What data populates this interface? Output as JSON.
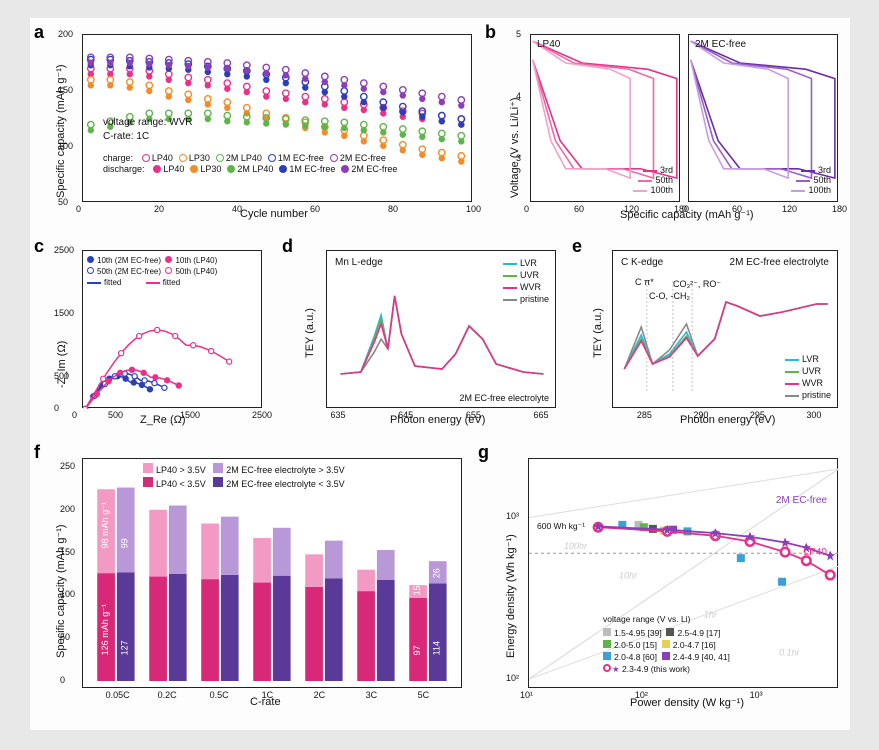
{
  "panels": {
    "a": {
      "label": "a",
      "ylabel": "Specific capacity (mAh g⁻¹)",
      "xlabel": "Cycle number",
      "ylim": [
        50,
        200
      ],
      "yticks": [
        50,
        100,
        150,
        200
      ],
      "xlim": [
        0,
        100
      ],
      "xticks": [
        0,
        20,
        40,
        60,
        80,
        100
      ],
      "annotation1": "voltage range: WVR",
      "annotation2": "C-rate: 1C",
      "legend_header_charge": "charge:",
      "legend_header_discharge": "discharge:",
      "series": [
        {
          "name": "LP40",
          "color": "#e73289"
        },
        {
          "name": "LP30",
          "color": "#f28c2b"
        },
        {
          "name": "2M LP40",
          "color": "#5fb54a"
        },
        {
          "name": "1M EC-free",
          "color": "#2a3fba"
        },
        {
          "name": "2M EC-free",
          "color": "#8a3fb8"
        }
      ],
      "charge_y": {
        "LP40": [
          170,
          170,
          170,
          168,
          165,
          162,
          160,
          157,
          154,
          150,
          148,
          145,
          143,
          140,
          138,
          135,
          132,
          130,
          128,
          125
        ],
        "LP30": [
          160,
          160,
          158,
          155,
          150,
          147,
          143,
          140,
          135,
          130,
          126,
          122,
          118,
          115,
          110,
          106,
          102,
          98,
          95,
          92
        ],
        "2M LP40": [
          120,
          123,
          127,
          130,
          130,
          130,
          130,
          128,
          127,
          126,
          125,
          124,
          123,
          122,
          120,
          118,
          116,
          114,
          112,
          110
        ],
        "1M EC-free": [
          178,
          178,
          177,
          176,
          175,
          174,
          172,
          170,
          168,
          165,
          162,
          158,
          154,
          150,
          145,
          140,
          136,
          132,
          128,
          125
        ],
        "2M EC-free": [
          180,
          180,
          180,
          179,
          178,
          177,
          176,
          175,
          173,
          171,
          169,
          166,
          163,
          160,
          157,
          154,
          151,
          148,
          145,
          142
        ]
      },
      "discharge_y": {
        "LP40": [
          165,
          165,
          165,
          163,
          160,
          157,
          155,
          152,
          149,
          145,
          143,
          140,
          138,
          135,
          133,
          130,
          127,
          125,
          123,
          120
        ],
        "LP30": [
          155,
          155,
          153,
          150,
          145,
          142,
          138,
          135,
          130,
          125,
          121,
          117,
          113,
          110,
          105,
          101,
          97,
          93,
          90,
          87
        ],
        "2M LP40": [
          115,
          118,
          122,
          125,
          125,
          125,
          125,
          123,
          122,
          121,
          120,
          119,
          118,
          117,
          115,
          113,
          111,
          109,
          107,
          105
        ],
        "1M EC-free": [
          173,
          173,
          172,
          171,
          170,
          169,
          167,
          165,
          163,
          160,
          157,
          153,
          149,
          145,
          140,
          135,
          131,
          127,
          123,
          120
        ],
        "2M EC-free": [
          175,
          175,
          175,
          174,
          173,
          172,
          171,
          170,
          168,
          166,
          164,
          161,
          158,
          155,
          152,
          149,
          146,
          143,
          140,
          137
        ]
      }
    },
    "b": {
      "label": "b",
      "left_title": "LP40",
      "right_title": "2M EC-free",
      "ylabel": "Voltage (V vs. Li/Li⁺)",
      "xlabel": "Specific capacity (mAh g⁻¹)",
      "ylim": [
        2.5,
        5.0
      ],
      "yticks": [
        3,
        4,
        5
      ],
      "xlim": [
        0,
        180
      ],
      "xticks": [
        0,
        60,
        120,
        180
      ],
      "legend": [
        "3rd",
        "50th",
        "100th"
      ],
      "colors_left": [
        "#e73289",
        "#ed6aa8",
        "#f3a2c7"
      ],
      "colors_right": [
        "#6a2fa8",
        "#9a5fc7",
        "#c79fe0"
      ]
    },
    "c": {
      "label": "c",
      "ylabel": "-Z_Im (Ω)",
      "xlabel": "Z_Re (Ω)",
      "ylim": [
        0,
        2500
      ],
      "yticks": [
        0,
        500,
        1500,
        2500
      ],
      "xlim": [
        0,
        2500
      ],
      "xticks": [
        0,
        500,
        1500,
        2500
      ],
      "legend": [
        {
          "text": "10th (2M EC-free)",
          "color": "#2a3fba",
          "fill": true
        },
        {
          "text": "10th (LP40)",
          "color": "#e73289",
          "fill": true
        },
        {
          "text": "50th (2M EC-free)",
          "color": "#2a3fba",
          "fill": false
        },
        {
          "text": "50th (LP40)",
          "color": "#e73289",
          "fill": false
        },
        {
          "text": "fitted",
          "color": "#2a3fba",
          "line": true
        },
        {
          "text": "fitted",
          "color": "#e73289",
          "line": true
        }
      ]
    },
    "d": {
      "label": "d",
      "title": "Mn L-edge",
      "ylabel": "TEY (a.u.)",
      "xlabel": "Photon energy (eV)",
      "xlim": [
        635,
        665
      ],
      "xticks": [
        635,
        645,
        655,
        665
      ],
      "annotation": "2M EC-free electrolyte",
      "legend": [
        {
          "text": "LVR",
          "color": "#2bb8d8"
        },
        {
          "text": "UVR",
          "color": "#5fb54a"
        },
        {
          "text": "WVR",
          "color": "#e73289"
        },
        {
          "text": "pristine",
          "color": "#888888"
        }
      ]
    },
    "e": {
      "label": "e",
      "title": "C K-edge",
      "title2": "2M EC-free electrolyte",
      "ylabel": "TEY (a.u.)",
      "xlabel": "Photon energy (eV)",
      "xlim": [
        282,
        301
      ],
      "xticks": [
        285,
        290,
        295,
        300
      ],
      "annotations": [
        "C π*",
        "C-O, -CH₂",
        "CO₃²⁻, RO⁻"
      ],
      "legend": [
        {
          "text": "LVR",
          "color": "#2bb8d8"
        },
        {
          "text": "UVR",
          "color": "#5fb54a"
        },
        {
          "text": "WVR",
          "color": "#e73289"
        },
        {
          "text": "pristine",
          "color": "#888888"
        }
      ]
    },
    "f": {
      "label": "f",
      "ylabel": "Specific capacity (mAh g⁻¹)",
      "xlabel": "C-rate",
      "ylim": [
        0,
        250
      ],
      "yticks": [
        0,
        50,
        100,
        150,
        200,
        250
      ],
      "categories": [
        "0.05C",
        "0.2C",
        "0.5C",
        "1C",
        "2C",
        "3C",
        "5C"
      ],
      "legend": [
        {
          "text": "LP40 > 3.5V",
          "color": "#f29ac3"
        },
        {
          "text": "2M EC-free electrolyte > 3.5V",
          "color": "#b998d8"
        },
        {
          "text": "LP40 < 3.5V",
          "color": "#d82878"
        },
        {
          "text": "2M EC-free electrolyte < 3.5V",
          "color": "#5a3a98"
        }
      ],
      "bars": {
        "lp40_low": [
          126,
          122,
          119,
          115,
          110,
          105,
          97
        ],
        "lp40_high": [
          98,
          78,
          65,
          52,
          38,
          25,
          15
        ],
        "ec_low": [
          127,
          125,
          124,
          123,
          120,
          118,
          114
        ],
        "ec_high": [
          99,
          80,
          68,
          56,
          44,
          35,
          26
        ]
      },
      "bar_labels": {
        "left_bottom": "126 mAh g⁻¹",
        "left_top": "98 mAh g⁻¹",
        "right_bottom": "127",
        "right_top": "99",
        "last_lp_low": "97",
        "last_lp_high": "15",
        "last_ec_low": "114",
        "last_ec_high": "26"
      }
    },
    "g": {
      "label": "g",
      "ylabel": "Energy density (Wh kg⁻¹)",
      "xlabel": "Power density (W kg⁻¹)",
      "ylim": [
        100,
        2000
      ],
      "xlim": [
        10,
        5000
      ],
      "xticks": [
        "10¹",
        "10²",
        "10³"
      ],
      "yticks": [
        "10²",
        "10³"
      ],
      "dashed_label": "600 Wh kg⁻¹",
      "callout1": "2M EC-free",
      "callout2": "LP40",
      "diag_labels": [
        "100hr",
        "10hr",
        "1hr",
        "0.1hr"
      ],
      "legend_title": "voltage range (V vs. Li)",
      "legend": [
        {
          "text": "1.5-4.95 [39]",
          "color": "#bcbcbc"
        },
        {
          "text": "2.5-4.9 [17]",
          "color": "#555555"
        },
        {
          "text": "2.0-5.0 [15]",
          "color": "#5fb54a"
        },
        {
          "text": "2.0-4.7 [16]",
          "color": "#e6d050"
        },
        {
          "text": "2.0-4.8 [60]",
          "color": "#3aa0d8"
        },
        {
          "text": "2.4-4.9 [40, 41]",
          "color": "#8a3fb8"
        },
        {
          "text": "2.3-4.9 (this work)",
          "color": "#e73289",
          "star": "#8a3fb8"
        }
      ]
    }
  }
}
